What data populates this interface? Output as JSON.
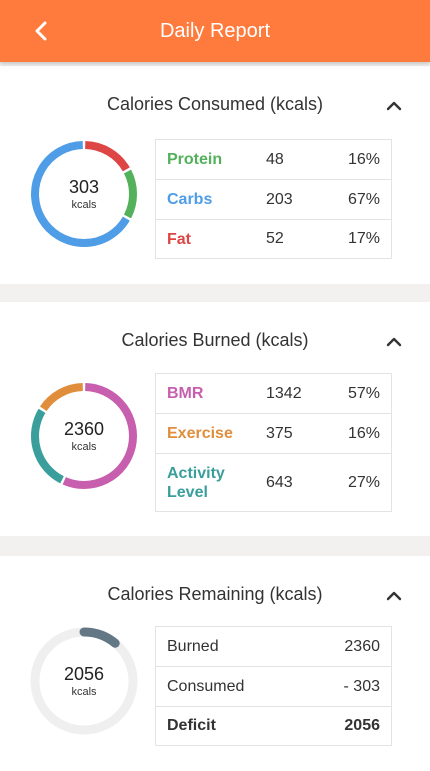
{
  "header": {
    "title": "Daily Report"
  },
  "consumed": {
    "title": "Calories Consumed (kcals)",
    "total": "303",
    "unit": "kcals",
    "rows": [
      {
        "name": "Protein",
        "value": "48",
        "pct": "16%",
        "color": "#52b15a",
        "fraction": 0.16
      },
      {
        "name": "Carbs",
        "value": "203",
        "pct": "67%",
        "color": "#4f9de6",
        "fraction": 0.67
      },
      {
        "name": "Fat",
        "value": "52",
        "pct": "17%",
        "color": "#de4545",
        "fraction": 0.17
      }
    ]
  },
  "burned": {
    "title": "Calories Burned (kcals)",
    "total": "2360",
    "unit": "kcals",
    "rows": [
      {
        "name": "BMR",
        "value": "1342",
        "pct": "57%",
        "color": "#c85eae",
        "fraction": 0.57
      },
      {
        "name": "Exercise",
        "value": "375",
        "pct": "16%",
        "color": "#e08e3c",
        "fraction": 0.16
      },
      {
        "name": "Activity Level",
        "value": "643",
        "pct": "27%",
        "color": "#3a9f9c",
        "fraction": 0.27
      }
    ]
  },
  "remaining": {
    "title": "Calories Remaining (kcals)",
    "total": "2056",
    "unit": "kcals",
    "ring_fill_fraction": 0.11,
    "ring_color": "#637785",
    "track_color": "#efefef",
    "rows": [
      {
        "label": "Burned",
        "value": "2360",
        "bold": false
      },
      {
        "label": "Consumed",
        "value": "- 303",
        "bold": false
      },
      {
        "label": "Deficit",
        "value": "2056",
        "bold": true
      }
    ]
  }
}
